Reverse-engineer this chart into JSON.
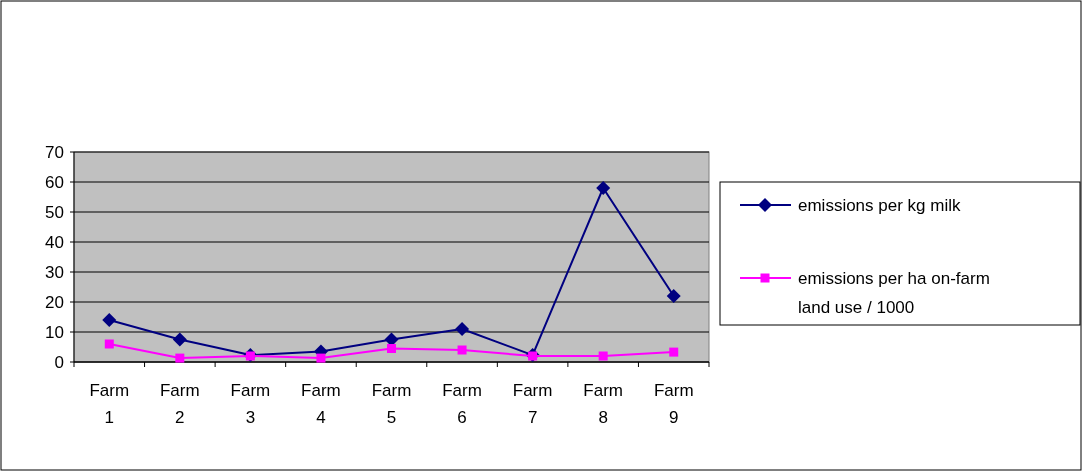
{
  "chart_data": {
    "type": "line",
    "categories": [
      "Farm 1",
      "Farm 2",
      "Farm 3",
      "Farm 4",
      "Farm 5",
      "Farm 6",
      "Farm 7",
      "Farm 8",
      "Farm 9"
    ],
    "series": [
      {
        "name": "emissions per kg milk",
        "color": "#000080",
        "marker": "diamond",
        "values": [
          14,
          7.5,
          2.3,
          3.5,
          7.5,
          11,
          2.3,
          58,
          22
        ]
      },
      {
        "name": "emissions per ha on-farm land use / 1000",
        "color": "#ff00ff",
        "marker": "square",
        "values": [
          6,
          1.3,
          2,
          1.3,
          4.5,
          4,
          2,
          2,
          3.3
        ]
      }
    ],
    "ylim": [
      0,
      70
    ],
    "yticks": [
      0,
      10,
      20,
      30,
      40,
      50,
      60,
      70
    ],
    "grid": "y",
    "legend": "right"
  }
}
